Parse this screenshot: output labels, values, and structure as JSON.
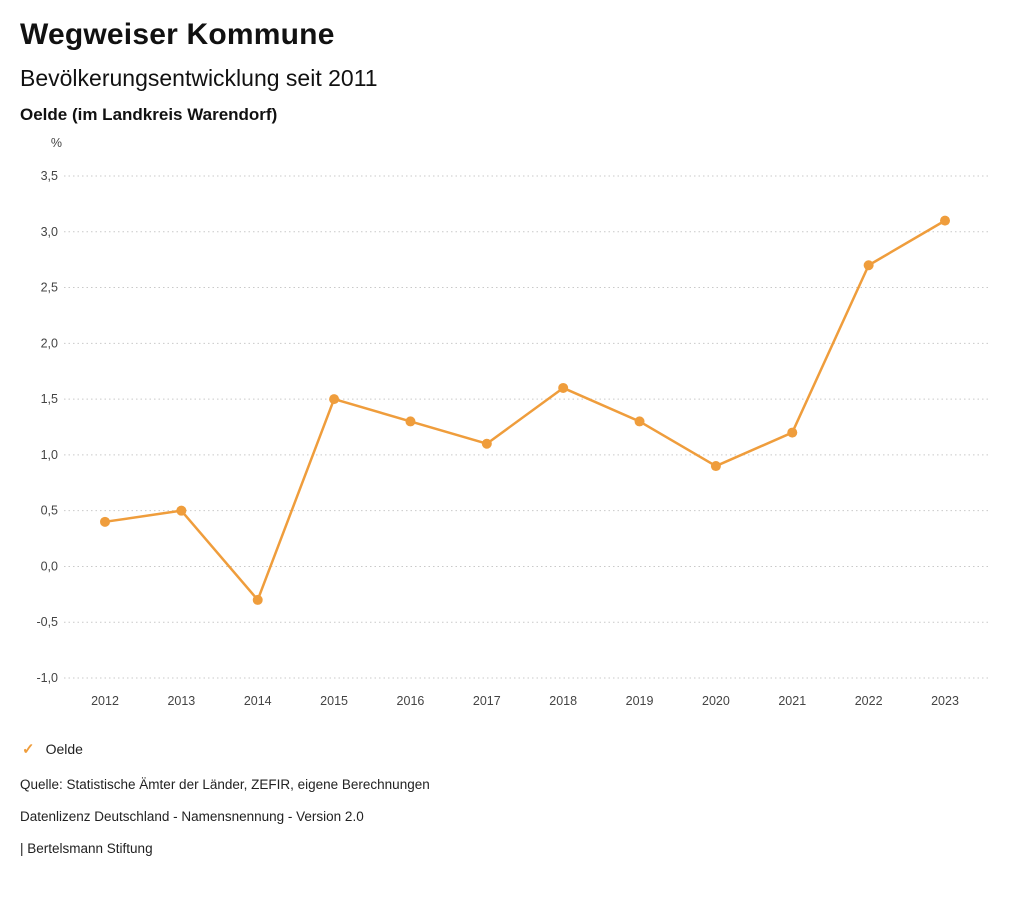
{
  "header": {
    "title": "Wegweiser Kommune",
    "subtitle": "Bevölkerungsentwicklung seit 2011",
    "region": "Oelde (im Landkreis Warendorf)"
  },
  "chart_data": {
    "type": "line",
    "title": "Bevölkerungsentwicklung seit 2011",
    "unit_label": "%",
    "x": [
      "2012",
      "2013",
      "2014",
      "2015",
      "2016",
      "2017",
      "2018",
      "2019",
      "2020",
      "2021",
      "2022",
      "2023"
    ],
    "series": [
      {
        "name": "Oelde",
        "values": [
          0.4,
          0.5,
          -0.3,
          1.5,
          1.3,
          1.1,
          1.6,
          1.3,
          0.9,
          1.2,
          2.7,
          3.1
        ],
        "color": "#EF9D3C",
        "marker": "circle"
      }
    ],
    "ylim": [
      -1.0,
      3.5
    ],
    "ytick_step": 0.5,
    "ytick_labels": [
      "3,5",
      "3,0",
      "2,5",
      "2,0",
      "1,5",
      "1,0",
      "0,5",
      "0,0",
      "-0,5",
      "-1,0"
    ],
    "grid": "horizontal-dotted",
    "legend_position": "bottom-left",
    "decimal_separator": ","
  },
  "legend": {
    "items": [
      {
        "label": "Oelde",
        "color": "#EF9D3C",
        "check_icon": "✓",
        "selected": true
      }
    ]
  },
  "footer": {
    "source": "Quelle: Statistische Ämter der Länder, ZEFIR, eigene Berechnungen",
    "license": "Datenlizenz Deutschland - Namensnennung - Version 2.0",
    "attribution": "| Bertelsmann Stiftung"
  }
}
